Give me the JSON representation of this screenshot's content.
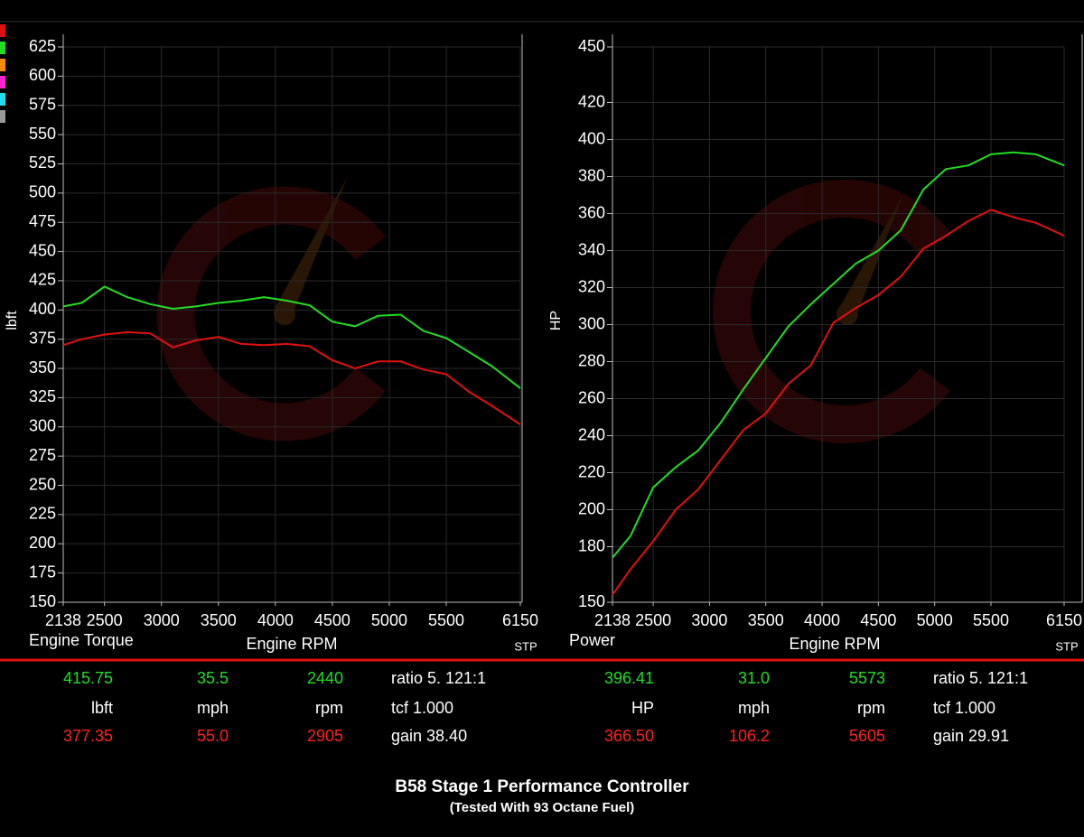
{
  "chart_data": [
    {
      "type": "line",
      "y_label": "lbft",
      "x_label": "Engine RPM",
      "panel_label": "Engine Torque",
      "corner_label": "STP",
      "x": [
        2138,
        2300,
        2500,
        2700,
        2900,
        3100,
        3300,
        3500,
        3700,
        3900,
        4100,
        4300,
        4500,
        4700,
        4900,
        5100,
        5300,
        5500,
        5700,
        5900,
        6150
      ],
      "series": [
        {
          "color": "#22dd22",
          "values": [
            403,
            406,
            420,
            411,
            405,
            401,
            403,
            406,
            408,
            411,
            408,
            404,
            390,
            386,
            395,
            396,
            382,
            376,
            364,
            352,
            333
          ]
        },
        {
          "color": "#e01010",
          "values": [
            370,
            375,
            379,
            381,
            380,
            368,
            374,
            377,
            371,
            370,
            371,
            369,
            357,
            350,
            356,
            356,
            349,
            345,
            330,
            318,
            302
          ]
        }
      ],
      "xlim": [
        2138,
        6150
      ],
      "xticks": [
        2138,
        2500,
        3000,
        3500,
        4000,
        4500,
        5000,
        5500,
        6150
      ],
      "ylim": [
        150,
        625
      ],
      "yticks": [
        150,
        175,
        200,
        225,
        250,
        275,
        300,
        325,
        350,
        375,
        400,
        425,
        450,
        475,
        500,
        525,
        550,
        575,
        600,
        625
      ],
      "grid": true
    },
    {
      "type": "line",
      "y_label": "HP",
      "x_label": "Engine RPM",
      "panel_label": "Power",
      "corner_label": "STP",
      "x": [
        2138,
        2300,
        2500,
        2700,
        2900,
        3100,
        3300,
        3500,
        3700,
        3900,
        4100,
        4300,
        4500,
        4700,
        4900,
        5100,
        5300,
        5500,
        5700,
        5900,
        6150
      ],
      "series": [
        {
          "color": "#22dd22",
          "values": [
            174,
            186,
            212,
            223,
            232,
            247,
            265,
            282,
            299,
            311,
            322,
            333,
            340,
            351,
            373,
            384,
            386,
            392,
            393,
            392,
            386
          ]
        },
        {
          "color": "#e01010",
          "values": [
            154,
            168,
            183,
            200,
            211,
            227,
            243,
            252,
            268,
            278,
            301,
            309,
            316,
            326,
            341,
            348,
            356,
            362,
            358,
            355,
            348
          ]
        }
      ],
      "xlim": [
        2138,
        6150
      ],
      "xticks": [
        2138,
        2500,
        3000,
        3500,
        4000,
        4500,
        5000,
        5500,
        6150
      ],
      "ylim": [
        150,
        450
      ],
      "yticks": [
        150,
        180,
        200,
        220,
        240,
        260,
        280,
        300,
        320,
        340,
        360,
        380,
        400,
        420,
        450
      ],
      "grid": true
    }
  ],
  "readouts": [
    {
      "rows": [
        [
          "415.75",
          "35.5",
          "2440",
          "ratio 5. 121:1"
        ],
        [
          "lbft",
          "mph",
          "rpm",
          "tcf 1.000"
        ],
        [
          "377.35",
          "55.0",
          "2905",
          "gain 38.40"
        ]
      ]
    },
    {
      "rows": [
        [
          "396.41",
          "31.0",
          "5573",
          "ratio 5. 121:1"
        ],
        [
          "HP",
          "mph",
          "rpm",
          "tcf 1.000"
        ],
        [
          "366.50",
          "106.2",
          "5605",
          "gain 29.91"
        ]
      ]
    }
  ],
  "footer": {
    "title": "B58 Stage 1 Performance Controller",
    "subtitle": "(Tested With 93 Octane Fuel)"
  }
}
